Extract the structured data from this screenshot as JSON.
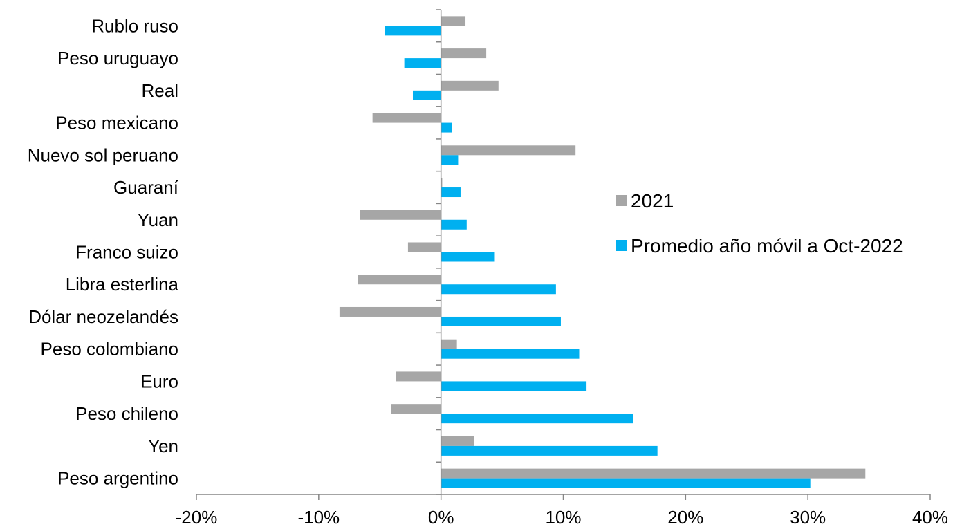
{
  "chart_data": {
    "type": "bar",
    "orientation": "horizontal",
    "categories": [
      "Rublo ruso",
      "Peso uruguayo",
      "Real",
      "Peso mexicano",
      "Nuevo sol peruano",
      "Guaraní",
      "Yuan",
      "Franco suizo",
      "Libra esterlina",
      "Dólar neozelandés",
      "Peso colombiano",
      "Euro",
      "Peso chileno",
      "Yen",
      "Peso argentino"
    ],
    "series": [
      {
        "name": "2021",
        "color": "#a6a6a6",
        "values": [
          2.0,
          3.7,
          4.7,
          -5.6,
          11.0,
          0.1,
          -6.6,
          -2.7,
          -6.8,
          -8.3,
          1.3,
          -3.7,
          -4.1,
          2.7,
          34.7
        ]
      },
      {
        "name": "Promedio año móvil a Oct-2022",
        "color": "#00b0f0",
        "values": [
          -4.6,
          -3.0,
          -2.3,
          0.9,
          1.4,
          1.6,
          2.1,
          4.4,
          9.4,
          9.8,
          11.3,
          11.9,
          15.7,
          17.7,
          30.2
        ]
      }
    ],
    "xlim": [
      -20,
      40
    ],
    "xticks": [
      -20,
      -10,
      0,
      10,
      20,
      30,
      40
    ],
    "tick_suffix": "%",
    "grid": false,
    "legend_position": "center-right"
  }
}
